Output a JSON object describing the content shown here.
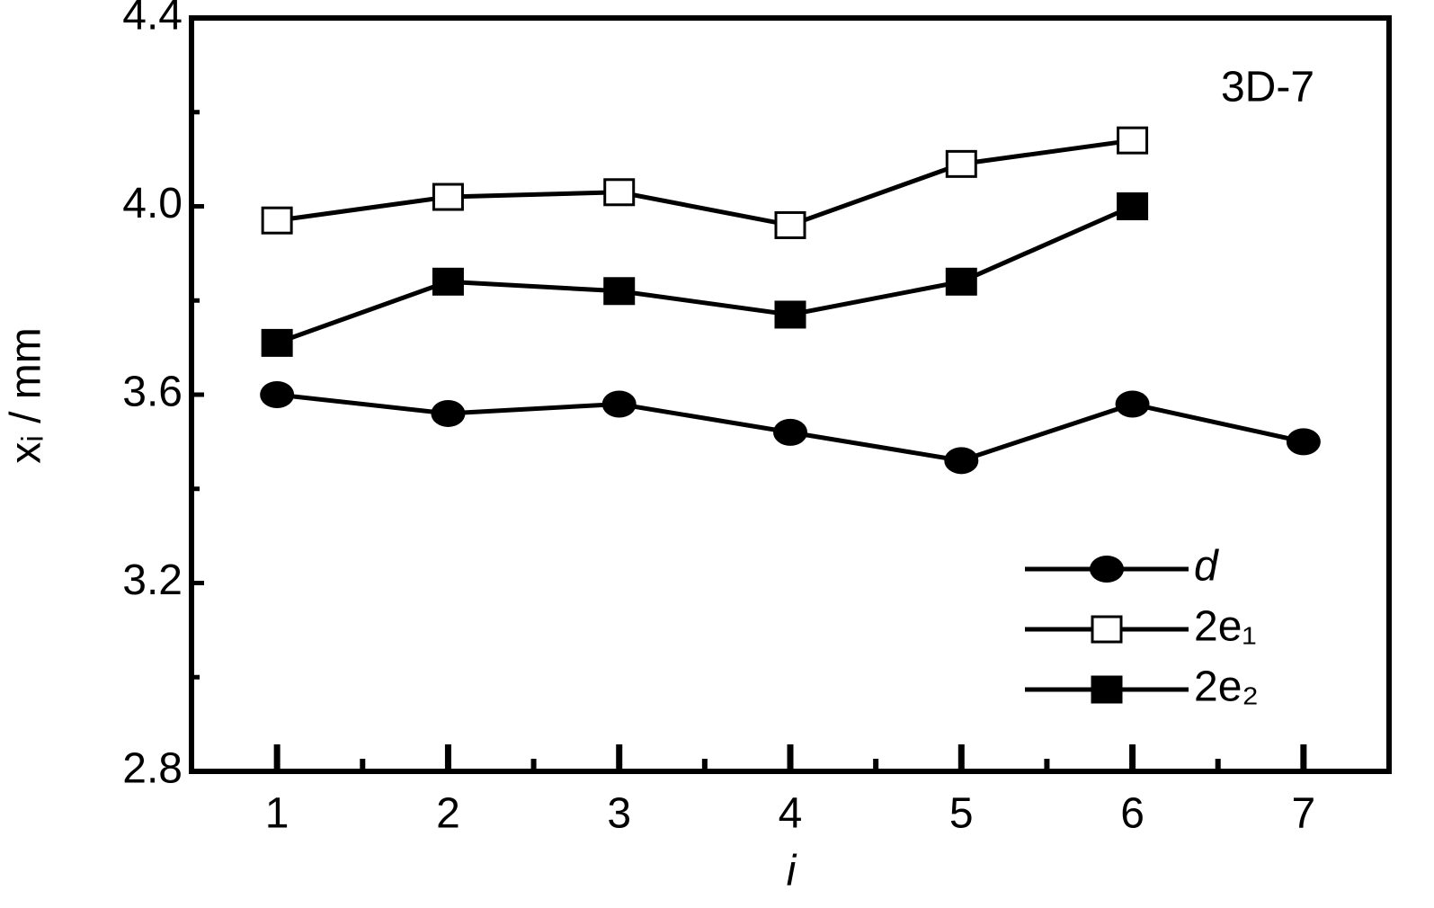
{
  "chart_data": {
    "type": "line",
    "annotation": "3D-7",
    "x_label": "i",
    "y_label": "xᵢ / mm",
    "x": [
      1,
      2,
      3,
      4,
      5,
      6,
      7
    ],
    "xlim": [
      0.5,
      7.5
    ],
    "xticks": [
      1,
      2,
      3,
      4,
      5,
      6,
      7
    ],
    "ylim": [
      2.8,
      4.4
    ],
    "yticks": [
      2.8,
      3.2,
      3.6,
      {
        "value": 4,
        "label": "4.0"
      },
      4.4
    ],
    "grid": false,
    "legend": "lower right",
    "series": [
      {
        "name": "d",
        "color": "#000000",
        "marker": "circle",
        "values": [
          3.6,
          3.56,
          3.58,
          3.52,
          3.46,
          3.58,
          3.5
        ]
      },
      {
        "name": "2e₁",
        "color": "#000000",
        "marker": "open-square",
        "values": [
          3.97,
          4.02,
          4.03,
          3.96,
          4.09,
          4.14,
          null
        ]
      },
      {
        "name": "2e₂",
        "color": "#000000",
        "marker": "filled-square",
        "values": [
          3.71,
          3.84,
          3.82,
          3.77,
          3.84,
          4.0,
          null
        ]
      }
    ]
  }
}
